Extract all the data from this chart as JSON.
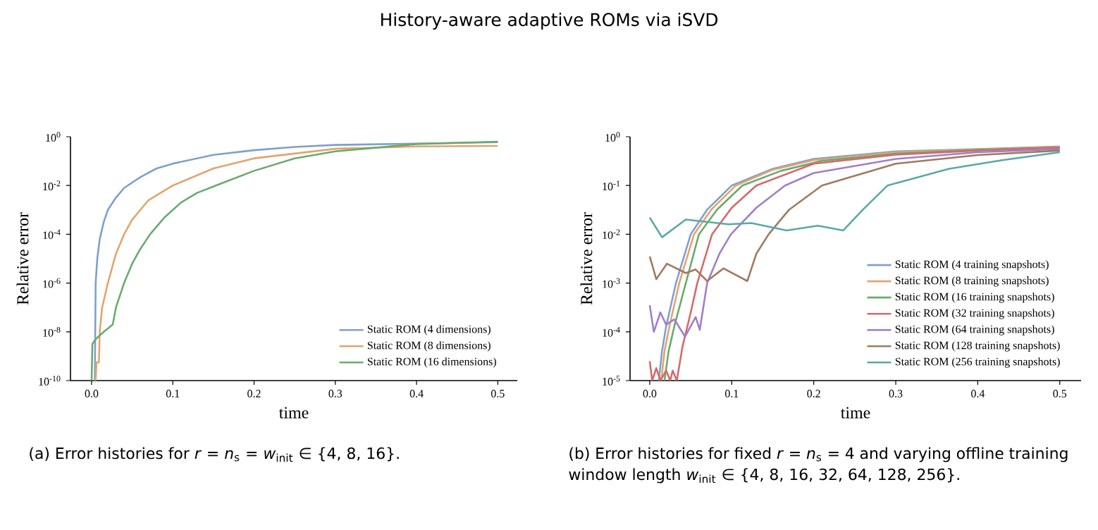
{
  "chart_data": [
    {
      "type": "line",
      "title": "History-aware adaptive ROMs via iSVD",
      "xlabel": "time",
      "ylabel": "Relative error",
      "log": "y",
      "legend": "bottom right",
      "xlim": [
        -0.026,
        0.524
      ],
      "ylim": [
        1e-10,
        1
      ],
      "xticks": [
        {
          "value": 0,
          "label": "0.0"
        },
        {
          "value": 0.1,
          "label": "0.1"
        },
        {
          "value": 0.2,
          "label": "0.2"
        },
        {
          "value": 0.3,
          "label": "0.3"
        },
        {
          "value": 0.4,
          "label": "0.4"
        },
        {
          "value": 0.5,
          "label": "0.5"
        }
      ],
      "yticks": [
        {
          "value": 1e-10,
          "label": "10$^{-10}$"
        },
        {
          "value": 1e-08,
          "label": "10$^{-8}$"
        },
        {
          "value": 1e-06,
          "label": "10$^{-6}$"
        },
        {
          "value": 0.0001,
          "label": "10$^{-4}$"
        },
        {
          "value": 0.01,
          "label": "10$^{-2}$"
        },
        {
          "value": 1,
          "label": "10$^{0}$"
        }
      ],
      "annotations": [
        "(a) Error histories for *r* = *n*$_{s}$ = *w*$_{init}$ ∈ {4, 8, 16}."
      ],
      "series": [
        {
          "name": "Static ROM (4 dimensions)",
          "color": "#7fa0cc",
          "x": [
            0.004,
            0.005,
            0.007,
            0.01,
            0.015,
            0.02,
            0.03,
            0.04,
            0.06,
            0.08,
            0.1,
            0.15,
            0.2,
            0.25,
            0.3,
            0.4,
            0.5
          ],
          "values": [
            1e-10,
            1e-06,
            1e-05,
            6.3e-05,
            0.00032,
            0.001,
            0.0032,
            0.0079,
            0.022,
            0.05,
            0.079,
            0.18,
            0.28,
            0.38,
            0.46,
            0.52,
            0.6
          ]
        },
        {
          "name": "Static ROM (8 dimensions)",
          "color": "#e3a46f",
          "x": [
            0.005,
            0.006,
            0.009,
            0.01,
            0.013,
            0.02,
            0.03,
            0.04,
            0.05,
            0.07,
            0.1,
            0.15,
            0.2,
            0.3,
            0.4,
            0.5
          ],
          "values": [
            1e-10,
            5.6e-10,
            5.6e-10,
            1e-08,
            1e-07,
            1e-06,
            1.6e-05,
            0.0001,
            0.0004,
            0.0025,
            0.01,
            0.05,
            0.13,
            0.32,
            0.4,
            0.42
          ]
        },
        {
          "name": "Static ROM (16 dimensions)",
          "color": "#6aab6e",
          "x": [
            0.0,
            0.001,
            0.005,
            0.015,
            0.026,
            0.03,
            0.04,
            0.05,
            0.06,
            0.072,
            0.09,
            0.11,
            0.13,
            0.153,
            0.2,
            0.25,
            0.3,
            0.4,
            0.5
          ],
          "values": [
            1e-10,
            3.2e-09,
            5e-09,
            1e-08,
            2e-08,
            1e-07,
            1e-06,
            6.3e-06,
            2.5e-05,
            0.0001,
            0.0005,
            0.002,
            0.005,
            0.01,
            0.04,
            0.13,
            0.25,
            0.5,
            0.63
          ]
        }
      ]
    },
    {
      "type": "line",
      "xlabel": "time",
      "ylabel": "Relative error",
      "log": "y",
      "legend": "bottom right",
      "xlim": [
        -0.024,
        0.526
      ],
      "ylim": [
        1e-05,
        1
      ],
      "xticks": [
        {
          "value": 0,
          "label": "0.0"
        },
        {
          "value": 0.1,
          "label": "0.1"
        },
        {
          "value": 0.2,
          "label": "0.2"
        },
        {
          "value": 0.3,
          "label": "0.3"
        },
        {
          "value": 0.4,
          "label": "0.4"
        },
        {
          "value": 0.5,
          "label": "0.5"
        }
      ],
      "yticks": [
        {
          "value": 1e-05,
          "label": "10$^{-5}$"
        },
        {
          "value": 0.0001,
          "label": "10$^{-4}$"
        },
        {
          "value": 0.001,
          "label": "10$^{-3}$"
        },
        {
          "value": 0.01,
          "label": "10$^{-2}$"
        },
        {
          "value": 0.1,
          "label": "10$^{-1}$"
        },
        {
          "value": 1,
          "label": "10$^{0}$"
        }
      ],
      "annotations": [
        "(b) Error histories for fixed *r* = *n*$_{s}$ = 4 and varying offline training window length *w*$_{init}$ ∈ {4, 8, 16, 32, 64, 128, 256}."
      ],
      "series": [
        {
          "name": "Static ROM (4 training snapshots)",
          "color": "#7fa0cc",
          "x": [
            0.011,
            0.015,
            0.02,
            0.032,
            0.05,
            0.07,
            0.1,
            0.15,
            0.2,
            0.3,
            0.4,
            0.5
          ],
          "values": [
            1e-05,
            4e-05,
            0.00013,
            0.001,
            0.01,
            0.032,
            0.1,
            0.22,
            0.35,
            0.5,
            0.56,
            0.63
          ]
        },
        {
          "name": "Static ROM (8 training snapshots)",
          "color": "#e3a46f",
          "x": [
            0.014,
            0.018,
            0.024,
            0.036,
            0.054,
            0.075,
            0.105,
            0.15,
            0.2,
            0.3,
            0.4,
            0.5
          ],
          "values": [
            1e-05,
            4e-05,
            0.00013,
            0.001,
            0.01,
            0.032,
            0.1,
            0.21,
            0.33,
            0.48,
            0.55,
            0.62
          ]
        },
        {
          "name": "Static ROM (16 training snapshots)",
          "color": "#6aab6e",
          "x": [
            0.018,
            0.023,
            0.03,
            0.044,
            0.06,
            0.082,
            0.113,
            0.16,
            0.21,
            0.3,
            0.4,
            0.5
          ],
          "values": [
            1e-05,
            4e-05,
            0.00013,
            0.001,
            0.01,
            0.032,
            0.1,
            0.2,
            0.32,
            0.45,
            0.54,
            0.6
          ]
        },
        {
          "name": "Static ROM (32 training snapshots)",
          "color": "#d46a6a",
          "x": [
            0,
            0.003,
            0.008,
            0.013,
            0.02,
            0.025,
            0.028,
            0.033,
            0.04,
            0.05,
            0.058,
            0.076,
            0.1,
            0.13,
            0.2,
            0.3,
            0.4,
            0.5
          ],
          "values": [
            2.5e-05,
            1e-05,
            1.8e-05,
            1e-05,
            1.6e-05,
            1e-05,
            1.6e-05,
            1e-05,
            5e-05,
            0.00025,
            0.001,
            0.01,
            0.035,
            0.1,
            0.28,
            0.43,
            0.52,
            0.6
          ]
        },
        {
          "name": "Static ROM (64 training snapshots)",
          "color": "#a07fc8",
          "x": [
            0,
            0.005,
            0.013,
            0.02,
            0.03,
            0.043,
            0.056,
            0.061,
            0.07,
            0.085,
            0.099,
            0.13,
            0.165,
            0.2,
            0.3,
            0.4,
            0.5
          ],
          "values": [
            0.00035,
            0.0001,
            0.00025,
            0.00014,
            0.00018,
            8e-05,
            0.0002,
            0.00011,
            0.001,
            0.004,
            0.01,
            0.035,
            0.1,
            0.18,
            0.35,
            0.48,
            0.56
          ]
        },
        {
          "name": "Static ROM (128 training snapshots)",
          "color": "#a07a60",
          "x": [
            0,
            0.008,
            0.021,
            0.044,
            0.056,
            0.07,
            0.09,
            0.119,
            0.13,
            0.145,
            0.17,
            0.21,
            0.3,
            0.4,
            0.5
          ],
          "values": [
            0.0035,
            0.0012,
            0.0025,
            0.0016,
            0.0019,
            0.0011,
            0.002,
            0.0011,
            0.004,
            0.01,
            0.032,
            0.1,
            0.28,
            0.42,
            0.52
          ]
        },
        {
          "name": "Static ROM (256 training snapshots)",
          "color": "#5aa9a6",
          "x": [
            0,
            0.015,
            0.044,
            0.096,
            0.124,
            0.167,
            0.205,
            0.236,
            0.26,
            0.29,
            0.365,
            0.43,
            0.5
          ],
          "values": [
            0.022,
            0.0087,
            0.02,
            0.016,
            0.017,
            0.012,
            0.015,
            0.012,
            0.032,
            0.1,
            0.22,
            0.33,
            0.48
          ]
        }
      ]
    }
  ]
}
